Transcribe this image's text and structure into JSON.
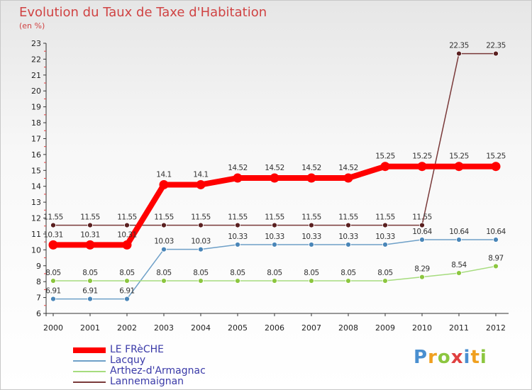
{
  "title": "Evolution du Taux de Taxe d'Habitation",
  "subtitle": "(en %)",
  "chart_data": {
    "type": "line",
    "title": "Evolution du Taux de Taxe d'Habitation",
    "ylabel": "(en %)",
    "xlabel": "",
    "x": [
      "2000",
      "2001",
      "2002",
      "2003",
      "2004",
      "2005",
      "2006",
      "2007",
      "2008",
      "2009",
      "2010",
      "2011",
      "2012"
    ],
    "ylim": [
      6,
      23
    ],
    "yticks": [
      "6",
      "7",
      "8",
      "9",
      "10",
      "11",
      "12",
      "13",
      "14",
      "15",
      "16",
      "17",
      "18",
      "19",
      "20",
      "21",
      "22",
      "23"
    ],
    "grid": false,
    "series": [
      {
        "name": "LE FRèCHE",
        "color": "#ff0000",
        "values": [
          10.31,
          10.31,
          10.31,
          14.1,
          14.1,
          14.52,
          14.52,
          14.52,
          14.52,
          15.25,
          15.25,
          15.25,
          15.25
        ],
        "labels": [
          "10.31",
          "10.31",
          "10.31",
          "14.1",
          "14.1",
          "14.52",
          "14.52",
          "14.52",
          "14.52",
          "15.25",
          "15.25",
          "15.25",
          "15.25"
        ]
      },
      {
        "name": "Lacquy",
        "color": "#6ea0c8",
        "values": [
          6.91,
          6.91,
          6.91,
          10.03,
          10.03,
          10.33,
          10.33,
          10.33,
          10.33,
          10.33,
          10.64,
          10.64,
          10.64
        ],
        "labels": [
          "6.91",
          "6.91",
          "6.91",
          "10.03",
          "10.03",
          "10.33",
          "10.33",
          "10.33",
          "10.33",
          "10.33",
          "10.64",
          "10.64",
          "10.64"
        ]
      },
      {
        "name": "Arthez-d'Armagnac",
        "color": "#a6dc7e",
        "values": [
          8.05,
          8.05,
          8.05,
          8.05,
          8.05,
          8.05,
          8.05,
          8.05,
          8.05,
          8.05,
          8.29,
          8.54,
          8.97
        ],
        "labels": [
          "8.05",
          "8.05",
          "8.05",
          "8.05",
          "8.05",
          "8.05",
          "8.05",
          "8.05",
          "8.05",
          "8.05",
          "8.29",
          "8.54",
          "8.97"
        ]
      },
      {
        "name": "Lannemaignan",
        "color": "#7a3a3a",
        "values": [
          11.55,
          11.55,
          11.55,
          11.55,
          11.55,
          11.55,
          11.55,
          11.55,
          11.55,
          11.55,
          11.55,
          22.35,
          22.35
        ],
        "labels": [
          "11.55",
          "11.55",
          "11.55",
          "11.55",
          "11.55",
          "11.55",
          "11.55",
          "11.55",
          "11.55",
          "11.55",
          "11.55",
          "22.35",
          "22.35"
        ]
      }
    ],
    "legend_position": "bottom-left"
  },
  "logo": {
    "letters": [
      "P",
      "r",
      "o",
      "x",
      "i",
      "t",
      "i"
    ],
    "colors": [
      "#4a8fd0",
      "#f0a020",
      "#8cc63f",
      "#e04040",
      "#4a8fd0",
      "#f0a020",
      "#8cc63f"
    ]
  }
}
